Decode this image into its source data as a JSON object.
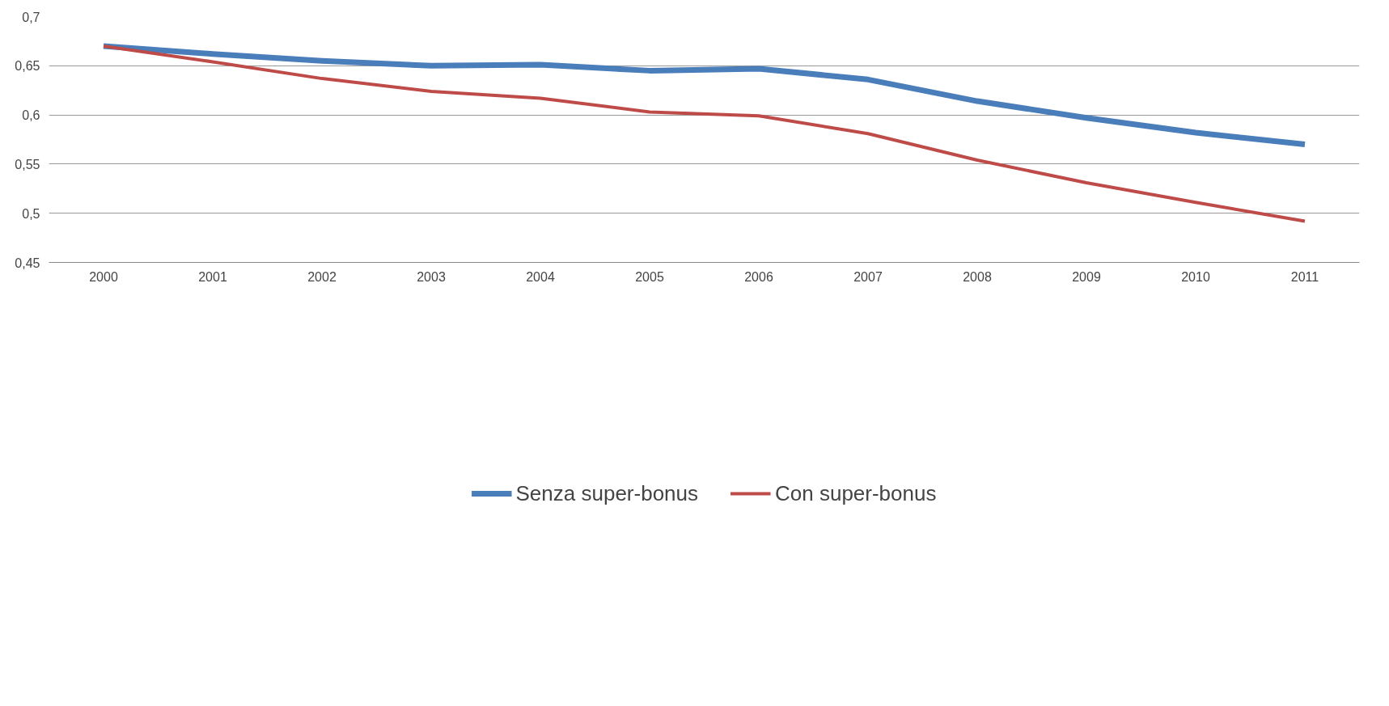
{
  "chart_data": {
    "type": "line",
    "categories": [
      "2000",
      "2001",
      "2002",
      "2003",
      "2004",
      "2005",
      "2006",
      "2007",
      "2008",
      "2009",
      "2010",
      "2011"
    ],
    "series": [
      {
        "name": "Senza super-bonus",
        "color": "#4a7ebb",
        "values": [
          0.67,
          0.662,
          0.655,
          0.65,
          0.651,
          0.645,
          0.647,
          0.636,
          0.614,
          0.597,
          0.582,
          0.57
        ]
      },
      {
        "name": "Con super-bonus",
        "color": "#be4b48",
        "values": [
          0.67,
          0.654,
          0.637,
          0.624,
          0.617,
          0.603,
          0.599,
          0.581,
          0.554,
          0.531,
          0.511,
          0.492
        ]
      }
    ],
    "ylim": [
      0.45,
      0.7
    ],
    "yticks": [
      {
        "value": 0.45,
        "label": "0,45"
      },
      {
        "value": 0.5,
        "label": "0,5"
      },
      {
        "value": 0.55,
        "label": "0,55"
      },
      {
        "value": 0.6,
        "label": "0,6"
      },
      {
        "value": 0.65,
        "label": "0,65"
      },
      {
        "value": 0.7,
        "label": "0,7"
      }
    ],
    "grid": "y",
    "legend": "bottom",
    "marker": "none",
    "line_style": "solid"
  }
}
